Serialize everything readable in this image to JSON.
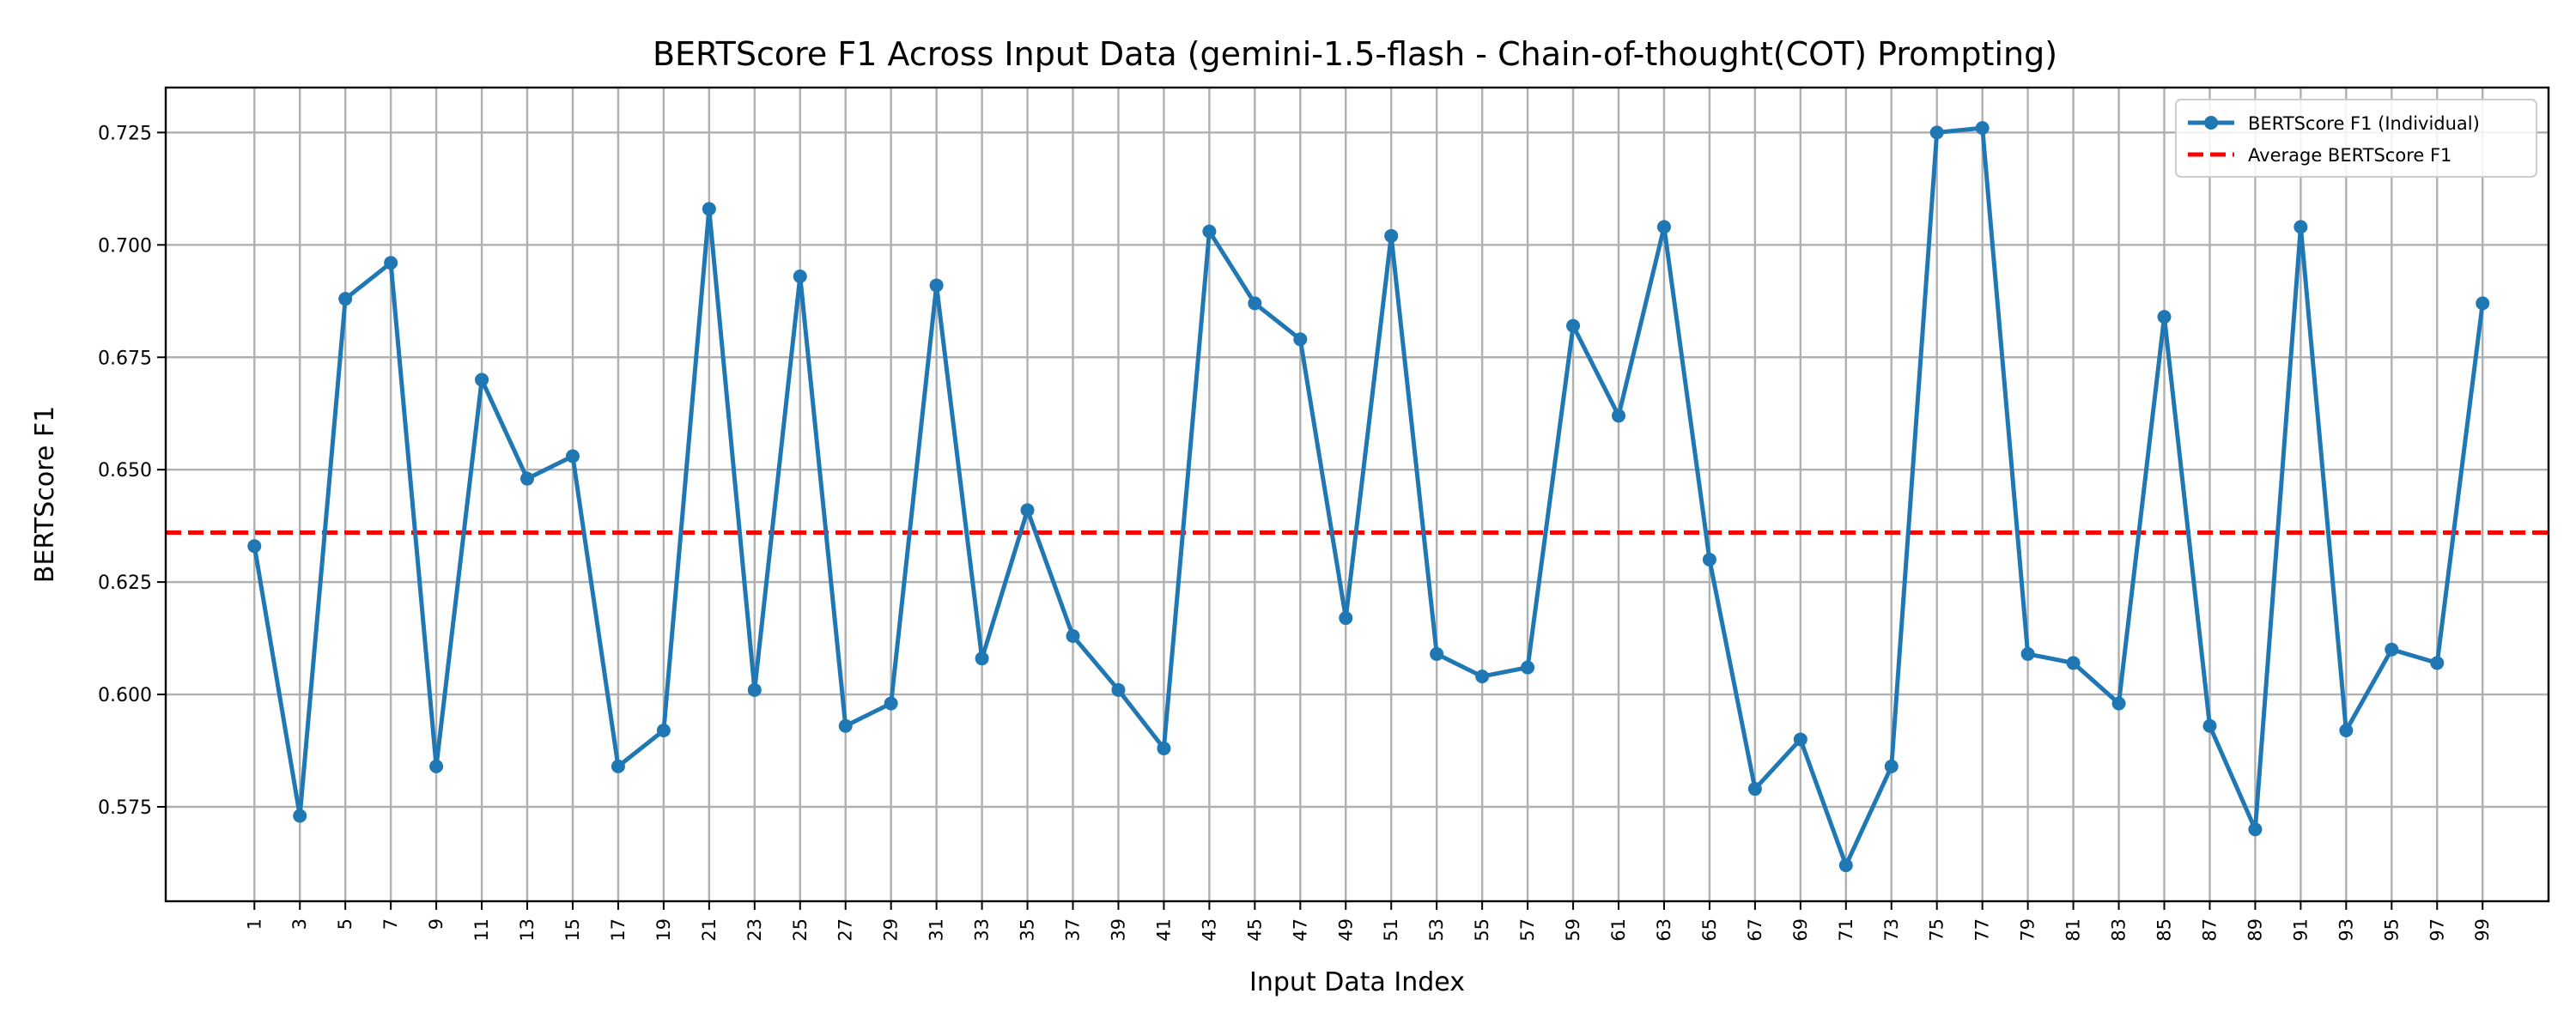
{
  "chart_data": {
    "type": "line",
    "title": "BERTScore F1 Across Input Data (gemini-1.5-flash - Chain-of-thought(COT) Prompting)",
    "xlabel": "Input Data Index",
    "ylabel": "BERTScore F1",
    "ylim": [
      0.554,
      0.735
    ],
    "xlim": [
      -2.9,
      101.9
    ],
    "yticks": [
      0.575,
      0.6,
      0.625,
      0.65,
      0.675,
      0.7,
      0.725
    ],
    "ytick_labels": [
      "0.575",
      "0.600",
      "0.625",
      "0.650",
      "0.675",
      "0.700",
      "0.725"
    ],
    "xticks": [
      1,
      3,
      5,
      7,
      9,
      11,
      13,
      15,
      17,
      19,
      21,
      23,
      25,
      27,
      29,
      31,
      33,
      35,
      37,
      39,
      41,
      43,
      45,
      47,
      49,
      51,
      53,
      55,
      57,
      59,
      61,
      63,
      65,
      67,
      69,
      71,
      73,
      75,
      77,
      79,
      81,
      83,
      85,
      87,
      89,
      91,
      93,
      95,
      97,
      99
    ],
    "xtick_labels": [
      "1",
      "3",
      "5",
      "7",
      "9",
      "11",
      "13",
      "15",
      "17",
      "19",
      "21",
      "23",
      "25",
      "27",
      "29",
      "31",
      "33",
      "35",
      "37",
      "39",
      "41",
      "43",
      "45",
      "47",
      "49",
      "51",
      "53",
      "55",
      "57",
      "59",
      "61",
      "63",
      "65",
      "67",
      "69",
      "71",
      "73",
      "75",
      "77",
      "79",
      "81",
      "83",
      "85",
      "87",
      "89",
      "91",
      "93",
      "95",
      "97",
      "99"
    ],
    "grid": true,
    "legend_position": "top-right",
    "series": [
      {
        "name": "BERTScore F1 (Individual)",
        "color": "#1f77b4",
        "style": "line-with-markers",
        "x": [
          1,
          3,
          5,
          7,
          9,
          11,
          13,
          15,
          17,
          19,
          21,
          23,
          25,
          27,
          29,
          31,
          33,
          35,
          37,
          39,
          41,
          43,
          45,
          47,
          49,
          51,
          53,
          55,
          57,
          59,
          61,
          63,
          65,
          67,
          69,
          71,
          73,
          75,
          77,
          79,
          81,
          83,
          85,
          87,
          89,
          91,
          93,
          95,
          97,
          99
        ],
        "y": [
          0.633,
          0.573,
          0.688,
          0.696,
          0.584,
          0.67,
          0.648,
          0.653,
          0.584,
          0.592,
          0.708,
          0.601,
          0.693,
          0.593,
          0.598,
          0.691,
          0.608,
          0.641,
          0.613,
          0.601,
          0.588,
          0.703,
          0.687,
          0.679,
          0.617,
          0.702,
          0.609,
          0.604,
          0.606,
          0.682,
          0.662,
          0.704,
          0.63,
          0.579,
          0.59,
          0.562,
          0.584,
          0.725,
          0.726,
          0.609,
          0.607,
          0.598,
          0.684,
          0.593,
          0.57,
          0.704,
          0.592,
          0.61,
          0.607,
          0.687
        ]
      },
      {
        "name": "Average BERTScore F1",
        "color": "#ff0000",
        "style": "dashed-horizontal",
        "y": 0.636
      }
    ]
  }
}
